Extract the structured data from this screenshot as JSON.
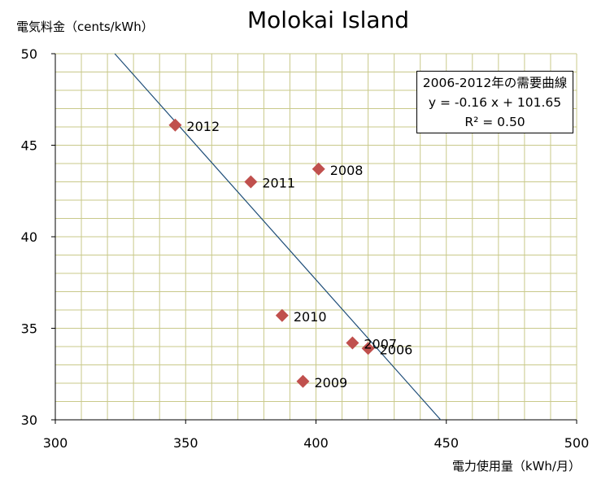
{
  "chart_data": {
    "type": "scatter",
    "title": "Molokai Island",
    "xlabel": "電力使用量（kWh/月）",
    "ylabel": "電気料金（cents/kWh）",
    "xlim": [
      300,
      500
    ],
    "ylim": [
      30,
      50
    ],
    "xticks": [
      "300",
      "350",
      "400",
      "450",
      "500"
    ],
    "yticks": [
      "30",
      "35",
      "40",
      "45",
      "50"
    ],
    "grid": true,
    "points": [
      {
        "label": "2006",
        "x": 420,
        "y": 33.9
      },
      {
        "label": "2007",
        "x": 414,
        "y": 34.2
      },
      {
        "label": "2008",
        "x": 401,
        "y": 43.7
      },
      {
        "label": "2009",
        "x": 395,
        "y": 32.1
      },
      {
        "label": "2010",
        "x": 387,
        "y": 35.7
      },
      {
        "label": "2011",
        "x": 375,
        "y": 43.0
      },
      {
        "label": "2012",
        "x": 346,
        "y": 46.1
      }
    ],
    "trendline": {
      "slope": -0.16,
      "intercept": 101.65
    },
    "annotation": {
      "line1": "2006-2012年の需要曲線",
      "line2": "y = -0.16 x + 101.65",
      "line3": "R² = 0.50"
    },
    "colors": {
      "marker": "#C0504D",
      "trendline": "#1F4E79",
      "grid": "#C9C98A"
    }
  }
}
